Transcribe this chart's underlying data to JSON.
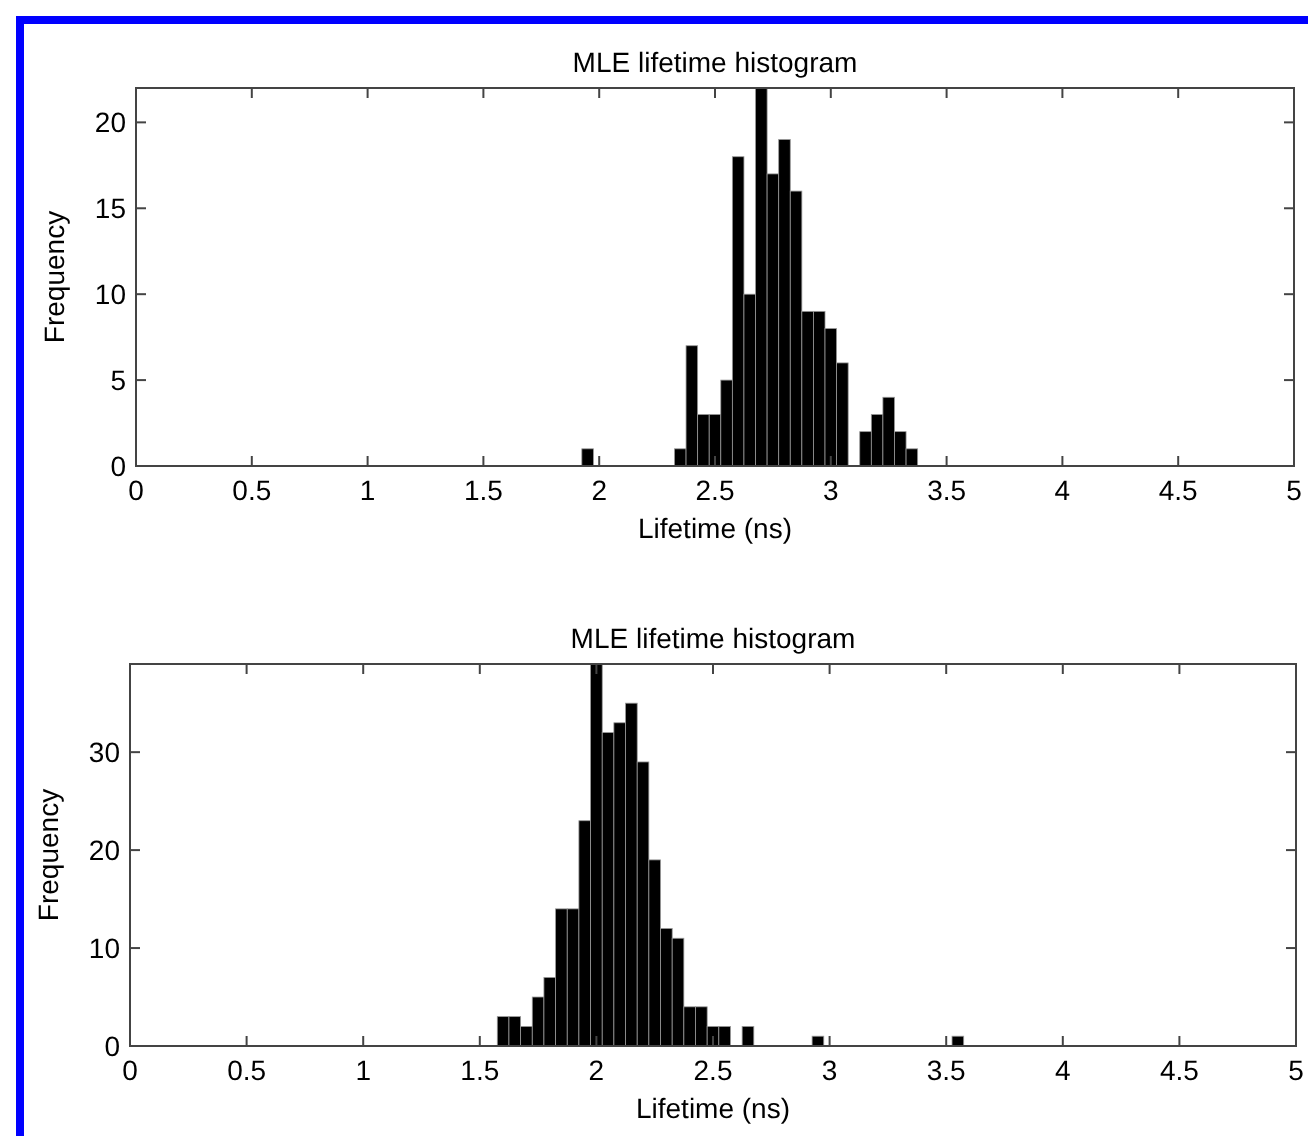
{
  "chart_data": [
    {
      "type": "histogram",
      "title": "MLE lifetime histogram",
      "xlabel": "Lifetime (ns)",
      "ylabel": "Frequency",
      "bins": [
        1.925,
        1.975,
        2.025,
        2.075,
        2.125,
        2.175,
        2.225,
        2.275,
        2.325,
        2.375,
        2.425,
        2.475,
        2.525,
        2.575,
        2.625,
        2.675,
        2.725,
        2.775,
        2.825,
        2.875,
        2.925,
        2.975,
        3.025,
        3.075,
        3.125,
        3.175,
        3.225,
        3.275,
        3.325,
        3.375
      ],
      "values": [
        1,
        0,
        0,
        0,
        0,
        0,
        0,
        0,
        1,
        7,
        3,
        3,
        5,
        18,
        10,
        22,
        17,
        19,
        16,
        9,
        9,
        8,
        6,
        0,
        2,
        3,
        4,
        2,
        1
      ],
      "color": "#000000",
      "xlim": [
        0,
        5
      ],
      "xticks": [
        0,
        0.5,
        1,
        1.5,
        2,
        2.5,
        3,
        3.5,
        4,
        4.5,
        5
      ],
      "ylim": [
        0,
        22
      ],
      "yticks": [
        0,
        5,
        10,
        15,
        20
      ],
      "grid": false
    },
    {
      "type": "histogram",
      "title": "MLE lifetime histogram",
      "xlabel": "Lifetime (ns)",
      "ylabel": "Frequency",
      "bins": [
        1.575,
        1.625,
        1.675,
        1.725,
        1.775,
        1.825,
        1.875,
        1.925,
        1.975,
        2.025,
        2.075,
        2.125,
        2.175,
        2.225,
        2.275,
        2.325,
        2.375,
        2.425,
        2.475,
        2.525,
        2.575,
        2.625,
        2.675,
        2.725,
        2.775,
        2.825,
        2.875,
        2.925,
        2.975,
        3.025,
        3.075,
        3.125,
        3.175,
        3.225,
        3.275,
        3.325,
        3.375,
        3.425,
        3.475,
        3.525,
        3.575
      ],
      "values": [
        3,
        3,
        2,
        5,
        7,
        14,
        14,
        23,
        39,
        32,
        33,
        35,
        29,
        19,
        12,
        11,
        4,
        4,
        2,
        2,
        0,
        2,
        0,
        0,
        0,
        0,
        0,
        1,
        0,
        0,
        0,
        0,
        0,
        0,
        0,
        0,
        0,
        0,
        0,
        1
      ],
      "color": "#000000",
      "xlim": [
        0,
        5
      ],
      "xticks": [
        0,
        0.5,
        1,
        1.5,
        2,
        2.5,
        3,
        3.5,
        4,
        4.5,
        5
      ],
      "ylim": [
        0,
        39
      ],
      "yticks": [
        0,
        10,
        20,
        30
      ],
      "grid": false
    }
  ]
}
